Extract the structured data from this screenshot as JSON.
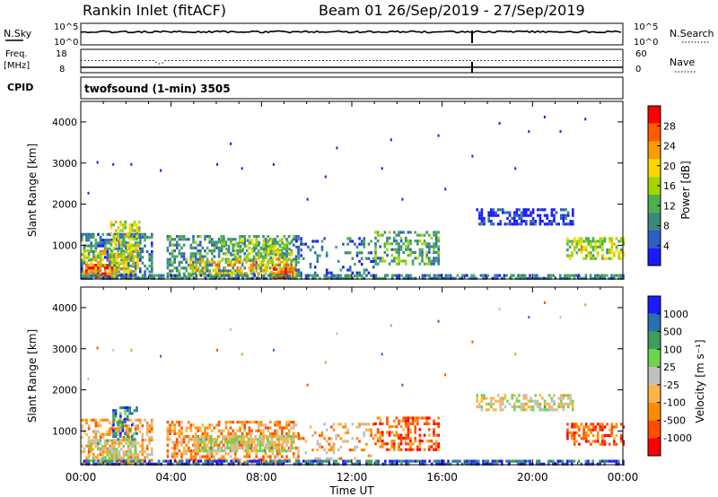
{
  "header": {
    "station": "Rankin Inlet (fitACF)",
    "beam_date": "Beam 01  26/Sep/2019 - 27/Sep/2019"
  },
  "noise_panel": {
    "left_label": "N.Sky",
    "left_ticks": [
      "10^5",
      "10^0"
    ],
    "right_ticks": [
      "10^5",
      "10^0"
    ],
    "right_label": "N.Search"
  },
  "freq_panel": {
    "left_label_line1": "Freq.",
    "left_label_line2": "[MHz]",
    "left_ticks": [
      "18",
      "8"
    ],
    "right_ticks": [
      "60",
      "0"
    ],
    "right_label": "Nave"
  },
  "cpid_panel": {
    "label": "CPID",
    "value": "twofsound (1-min) 3505"
  },
  "chart_data": [
    {
      "type": "heatmap",
      "panel": "power",
      "ylabel": "Slant Range [km]",
      "yticks": [
        "1000",
        "2000",
        "3000",
        "4000"
      ],
      "ylim": [
        180,
        4500
      ],
      "xticks": [
        "00:00",
        "04:00",
        "08:00",
        "12:00",
        "16:00",
        "20:00",
        "00:00"
      ],
      "xlim_hours": [
        0,
        24
      ],
      "colorbar": {
        "label": "Power [dB]",
        "ticks": [
          "28",
          "24",
          "20",
          "16",
          "12",
          "8",
          "4"
        ],
        "range": [
          0,
          30
        ],
        "colors": [
          "#1a1aff",
          "#2b5fc0",
          "#3a8a7a",
          "#4caf50",
          "#a3d400",
          "#ffd700",
          "#ff9a00",
          "#ff5a00",
          "#ff0000"
        ]
      },
      "regions": [
        {
          "t0": 0.0,
          "t1": 3.2,
          "r0": 200,
          "r1": 1300,
          "level": 0.25,
          "density": 0.55
        },
        {
          "t0": 0.1,
          "t1": 2.5,
          "r0": 250,
          "r1": 900,
          "level": 0.6,
          "density": 0.5
        },
        {
          "t0": 1.3,
          "t1": 2.6,
          "r0": 700,
          "r1": 1600,
          "level": 0.55,
          "density": 0.45
        },
        {
          "t0": 0.2,
          "t1": 1.4,
          "r0": 250,
          "r1": 550,
          "level": 0.85,
          "density": 0.55
        },
        {
          "t0": 3.8,
          "t1": 9.6,
          "r0": 250,
          "r1": 1250,
          "level": 0.3,
          "density": 0.5
        },
        {
          "t0": 4.8,
          "t1": 9.5,
          "r0": 250,
          "r1": 700,
          "level": 0.65,
          "density": 0.45
        },
        {
          "t0": 6.2,
          "t1": 9.4,
          "r0": 600,
          "r1": 1150,
          "level": 0.45,
          "density": 0.45
        },
        {
          "t0": 8.4,
          "t1": 9.5,
          "r0": 230,
          "r1": 450,
          "level": 0.9,
          "density": 0.6
        },
        {
          "t0": 9.5,
          "t1": 13.0,
          "r0": 250,
          "r1": 1200,
          "level": 0.2,
          "density": 0.2
        },
        {
          "t0": 13.0,
          "t1": 15.8,
          "r0": 550,
          "r1": 1350,
          "level": 0.35,
          "density": 0.45
        },
        {
          "t0": 17.5,
          "t1": 21.8,
          "r0": 1550,
          "r1": 1900,
          "level": 0.1,
          "density": 0.55
        },
        {
          "t0": 21.5,
          "t1": 24.0,
          "r0": 650,
          "r1": 1200,
          "level": 0.5,
          "density": 0.55
        },
        {
          "t0": 0.0,
          "t1": 24.0,
          "r0": 180,
          "r1": 300,
          "level": 0.25,
          "density": 0.7
        }
      ],
      "scatter_points": [
        [
          0.7,
          3050
        ],
        [
          1.4,
          3000
        ],
        [
          2.2,
          3000
        ],
        [
          3.5,
          2850
        ],
        [
          6.0,
          3000
        ],
        [
          6.6,
          3500
        ],
        [
          7.1,
          2900
        ],
        [
          8.5,
          3000
        ],
        [
          10.0,
          2150
        ],
        [
          11.3,
          3400
        ],
        [
          13.7,
          3600
        ],
        [
          15.8,
          3700
        ],
        [
          17.3,
          3200
        ],
        [
          18.5,
          4000
        ],
        [
          19.2,
          2900
        ],
        [
          19.8,
          3800
        ],
        [
          20.5,
          4150
        ],
        [
          21.2,
          3800
        ],
        [
          22.3,
          4100
        ],
        [
          13.3,
          2900
        ],
        [
          16.1,
          2400
        ],
        [
          0.3,
          2300
        ],
        [
          10.8,
          2700
        ],
        [
          14.2,
          2150
        ]
      ]
    },
    {
      "type": "heatmap",
      "panel": "velocity",
      "ylabel": "Slant Range [km]",
      "yticks": [
        "1000",
        "2000",
        "3000",
        "4000"
      ],
      "ylim": [
        180,
        4500
      ],
      "xticks": [
        "00:00",
        "04:00",
        "08:00",
        "12:00",
        "16:00",
        "20:00",
        "00:00"
      ],
      "xlim_hours": [
        0,
        24
      ],
      "xlabel": "Time UT",
      "colorbar": {
        "label": "Velocity [m s⁻¹]",
        "ticks": [
          "1000",
          "500",
          "100",
          "25",
          "-25",
          "-100",
          "-500",
          "-1000"
        ],
        "range": [
          -1000,
          1000
        ],
        "colors": [
          "#ff0000",
          "#ff4d00",
          "#ff8c00",
          "#ffb347",
          "#c0c0c0",
          "#6fd44a",
          "#3a9f5a",
          "#2a6fb0",
          "#1a1aff"
        ]
      },
      "regions": [
        {
          "t0": 0.0,
          "t1": 3.2,
          "r0": 200,
          "r1": 1300,
          "level": 0.35,
          "density": 0.55
        },
        {
          "t0": 0.3,
          "t1": 2.4,
          "r0": 300,
          "r1": 800,
          "level": 0.5,
          "density": 0.6
        },
        {
          "t0": 1.4,
          "t1": 2.5,
          "r0": 800,
          "r1": 1600,
          "level": 0.8,
          "density": 0.45
        },
        {
          "t0": 3.8,
          "t1": 9.6,
          "r0": 250,
          "r1": 1250,
          "level": 0.3,
          "density": 0.5
        },
        {
          "t0": 5.0,
          "t1": 9.4,
          "r0": 500,
          "r1": 900,
          "level": 0.5,
          "density": 0.65
        },
        {
          "t0": 9.5,
          "t1": 13.0,
          "r0": 250,
          "r1": 1200,
          "level": 0.35,
          "density": 0.2
        },
        {
          "t0": 13.0,
          "t1": 15.8,
          "r0": 550,
          "r1": 1350,
          "level": 0.2,
          "density": 0.45
        },
        {
          "t0": 17.5,
          "t1": 21.8,
          "r0": 1550,
          "r1": 1900,
          "level": 0.5,
          "density": 0.5
        },
        {
          "t0": 21.5,
          "t1": 24.0,
          "r0": 650,
          "r1": 1200,
          "level": 0.18,
          "density": 0.55
        },
        {
          "t0": 0.0,
          "t1": 24.0,
          "r0": 180,
          "r1": 300,
          "level": 0.85,
          "density": 0.7
        }
      ],
      "scatter_points": [
        [
          0.7,
          3050
        ],
        [
          1.4,
          3000
        ],
        [
          2.2,
          3000
        ],
        [
          3.5,
          2850
        ],
        [
          6.0,
          3000
        ],
        [
          6.6,
          3500
        ],
        [
          7.1,
          2900
        ],
        [
          8.5,
          3000
        ],
        [
          10.0,
          2150
        ],
        [
          11.3,
          3400
        ],
        [
          13.7,
          3600
        ],
        [
          15.8,
          3700
        ],
        [
          17.3,
          3200
        ],
        [
          18.5,
          4000
        ],
        [
          19.2,
          2900
        ],
        [
          19.8,
          3800
        ],
        [
          20.5,
          4150
        ],
        [
          21.2,
          3800
        ],
        [
          22.3,
          4100
        ],
        [
          13.3,
          2900
        ],
        [
          16.1,
          2400
        ],
        [
          0.3,
          2300
        ],
        [
          10.8,
          2700
        ],
        [
          14.2,
          2150
        ]
      ]
    }
  ]
}
